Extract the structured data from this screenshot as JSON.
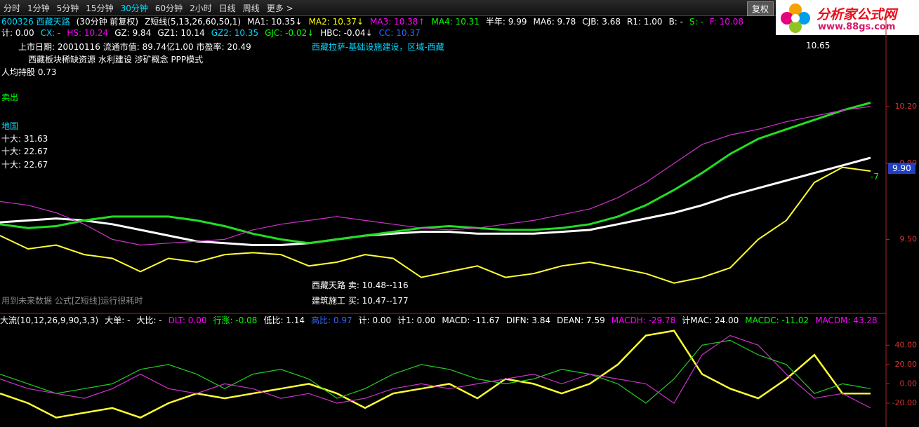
{
  "toolbar": {
    "tabs": [
      "分时",
      "1分钟",
      "5分钟",
      "15分钟",
      "30分钟",
      "60分钟",
      "2小时",
      "日线",
      "周线",
      "更多 >"
    ],
    "active": 4,
    "right_button": "复权"
  },
  "logo": {
    "title": "分析家公式网",
    "url": "www.88gs.com"
  },
  "info_lines": [
    [
      {
        "text": "600326 西藏天路",
        "color": "#00d8ff"
      },
      {
        "text": "(30分钟 前复权)",
        "color": "#ffffff"
      },
      {
        "text": "Z短线(5,13,26,60,50,1)",
        "color": "#ffffff"
      },
      {
        "text": "MA1: 10.35↓",
        "color": "#ffffff"
      },
      {
        "text": "MA2: 10.37↓",
        "color": "#ffff00"
      },
      {
        "text": "MA3: 10.38↑",
        "color": "#ff00ff"
      },
      {
        "text": "MA4: 10.31",
        "color": "#00ff00"
      },
      {
        "text": "半年: 9.99",
        "color": "#ffffff"
      },
      {
        "text": "MA6: 9.78",
        "color": "#ffffff"
      },
      {
        "text": "CJB: 3.68",
        "color": "#ffffff"
      },
      {
        "text": "R1: 1.00",
        "color": "#ffffff"
      },
      {
        "text": "B: -",
        "color": "#ffffff"
      },
      {
        "text": "S: -",
        "color": "#00ff00"
      },
      {
        "text": "F: 10.08",
        "color": "#ff00ff"
      }
    ],
    [
      {
        "text": "计: 0.00",
        "color": "#ffffff"
      },
      {
        "text": "CX: -",
        "color": "#00d8ff"
      },
      {
        "text": "HS: 10.24",
        "color": "#ff00ff"
      },
      {
        "text": "GZ: 9.84",
        "color": "#ffffff"
      },
      {
        "text": "GZ1: 10.14",
        "color": "#ffffff"
      },
      {
        "text": "GZ2: 10.35",
        "color": "#00d8ff"
      },
      {
        "text": "GJC: -0.02↓",
        "color": "#00ff00"
      },
      {
        "text": "HBC: -0.04↓",
        "color": "#ffffff"
      },
      {
        "text": "CC: 10.37",
        "color": "#3366ff"
      }
    ],
    [
      {
        "text": "大流(10,12,26,9,90,3,3)",
        "color": "#ffffff"
      },
      {
        "text": "大单: -",
        "color": "#ffffff"
      },
      {
        "text": "大比: -",
        "color": "#ffffff"
      },
      {
        "text": "DLT: 0.00",
        "color": "#ff00ff"
      },
      {
        "text": "行涨: -0.08",
        "color": "#00ff00"
      },
      {
        "text": "低比: 1.14",
        "color": "#ffffff"
      },
      {
        "text": "高比: 0.97",
        "color": "#3366ff"
      },
      {
        "text": "计: 0.00",
        "color": "#ffffff"
      },
      {
        "text": "计1: 0.00",
        "color": "#ffffff"
      },
      {
        "text": "MACD: -11.67",
        "color": "#ffffff"
      },
      {
        "text": "DIFN: 3.84",
        "color": "#ffffff"
      },
      {
        "text": "DEAN: 7.59",
        "color": "#ffffff"
      },
      {
        "text": "MACDH: -29.78",
        "color": "#ff00ff"
      },
      {
        "text": "计MAC: 24.00",
        "color": "#ffffff"
      },
      {
        "text": "MACDC: -11.02",
        "color": "#00ff00"
      },
      {
        "text": "MACDM: 43.28",
        "color": "#ff00ff"
      }
    ]
  ],
  "annotations": [
    {
      "text": "上市日期: 20010116 流通市值: 89.74亿1.00 市盈率: 20.49",
      "color": "#ffffff"
    },
    {
      "text": "西藏板块稀缺资源 水利建设 涉矿概念 PPP模式",
      "color": "#ffffff"
    },
    {
      "text": "人均持股 0.73",
      "color": "#ffffff"
    },
    {
      "text": "卖出",
      "color": "#00ff00"
    },
    {
      "text": "地国",
      "color": "#00d8ff"
    },
    {
      "text": "十大: 31.63",
      "color": "#ffffff"
    },
    {
      "text": "十大: 22.67",
      "color": "#ffffff"
    },
    {
      "text": "十大: 22.67",
      "color": "#ffffff"
    },
    {
      "text": "西藏拉萨-基础设施建设，区域-西藏",
      "color": "#00d8ff"
    },
    {
      "text": "西藏天路 卖: 10.48--116",
      "color": "#ffffff"
    },
    {
      "text": "建筑施工 买: 10.47--177",
      "color": "#ffffff"
    },
    {
      "text": "用到未来数据 公式[Z短线]运行很耗时",
      "color": "#888888"
    },
    {
      "text": "10.65",
      "color": "#ffffff"
    },
    {
      "text": "9.90",
      "color": "#ffffff"
    },
    {
      "text": "-7",
      "color": "#00ff00"
    }
  ],
  "chart_data": [
    {
      "type": "line",
      "ylim": [
        9.11,
        10.68
      ],
      "yticks": [
        {
          "value": 10.2,
          "label": "10.20"
        },
        {
          "value": 9.9,
          "label": "9.90"
        },
        {
          "value": 9.5,
          "label": "9.50"
        }
      ],
      "series": [
        {
          "color": "#ffffff",
          "values": [
            9.59,
            9.6,
            9.61,
            9.6,
            9.58,
            9.55,
            9.52,
            9.49,
            9.48,
            9.47,
            9.47,
            9.48,
            9.5,
            9.52,
            9.53,
            9.54,
            9.54,
            9.53,
            9.53,
            9.53,
            9.54,
            9.55,
            9.58,
            9.61,
            9.64,
            9.68,
            9.73,
            9.77,
            9.81,
            9.85,
            9.89,
            9.93
          ]
        },
        {
          "color": "#22dd22",
          "values": [
            9.58,
            9.56,
            9.57,
            9.6,
            9.62,
            9.62,
            9.62,
            9.6,
            9.57,
            9.53,
            9.5,
            9.48,
            9.5,
            9.52,
            9.54,
            9.56,
            9.57,
            9.56,
            9.55,
            9.55,
            9.56,
            9.58,
            9.62,
            9.68,
            9.76,
            9.85,
            9.95,
            10.03,
            10.08,
            10.13,
            10.18,
            10.22
          ]
        },
        {
          "color": "#ffff33",
          "values": [
            9.52,
            9.45,
            9.47,
            9.42,
            9.4,
            9.33,
            9.4,
            9.38,
            9.42,
            9.43,
            9.42,
            9.36,
            9.38,
            9.42,
            9.4,
            9.3,
            9.33,
            9.36,
            9.3,
            9.32,
            9.36,
            9.38,
            9.35,
            9.32,
            9.27,
            9.3,
            9.35,
            9.5,
            9.6,
            9.8,
            9.88,
            9.86
          ]
        },
        {
          "color": "#cc33cc",
          "values": [
            9.7,
            9.68,
            9.64,
            9.58,
            9.5,
            9.47,
            9.48,
            9.49,
            9.5,
            9.55,
            9.58,
            9.6,
            9.62,
            9.6,
            9.58,
            9.56,
            9.55,
            9.56,
            9.58,
            9.6,
            9.63,
            9.66,
            9.72,
            9.8,
            9.9,
            10.0,
            10.05,
            10.08,
            10.12,
            10.15,
            10.18,
            10.2
          ]
        }
      ]
    },
    {
      "type": "line",
      "ylim": [
        -44.7,
        62
      ],
      "yticks": [
        {
          "value": 40,
          "label": "40.00"
        },
        {
          "value": 20,
          "label": "20.00"
        },
        {
          "value": 0,
          "label": "0.00"
        },
        {
          "value": -20,
          "label": "-20.00"
        }
      ],
      "series": [
        {
          "color": "#ffff33",
          "values": [
            -10,
            -20,
            -35,
            -30,
            -25,
            -35,
            -20,
            -10,
            -15,
            -10,
            -5,
            0,
            -10,
            -25,
            -10,
            -5,
            0,
            -15,
            5,
            0,
            -10,
            0,
            20,
            50,
            55,
            10,
            -5,
            -15,
            5,
            30,
            -10,
            -10
          ]
        },
        {
          "color": "#22cc22",
          "values": [
            10,
            0,
            -10,
            -5,
            0,
            15,
            20,
            10,
            -5,
            10,
            15,
            5,
            -15,
            -5,
            10,
            20,
            15,
            5,
            0,
            5,
            15,
            10,
            0,
            -20,
            5,
            40,
            45,
            30,
            20,
            -10,
            0,
            -5
          ]
        },
        {
          "color": "#cc33cc",
          "values": [
            5,
            -5,
            -10,
            -15,
            -5,
            10,
            -5,
            -10,
            0,
            -5,
            -15,
            -10,
            -20,
            -15,
            -5,
            0,
            -5,
            0,
            5,
            10,
            0,
            10,
            5,
            0,
            -20,
            30,
            50,
            40,
            10,
            -15,
            -10,
            -25
          ]
        }
      ]
    }
  ]
}
